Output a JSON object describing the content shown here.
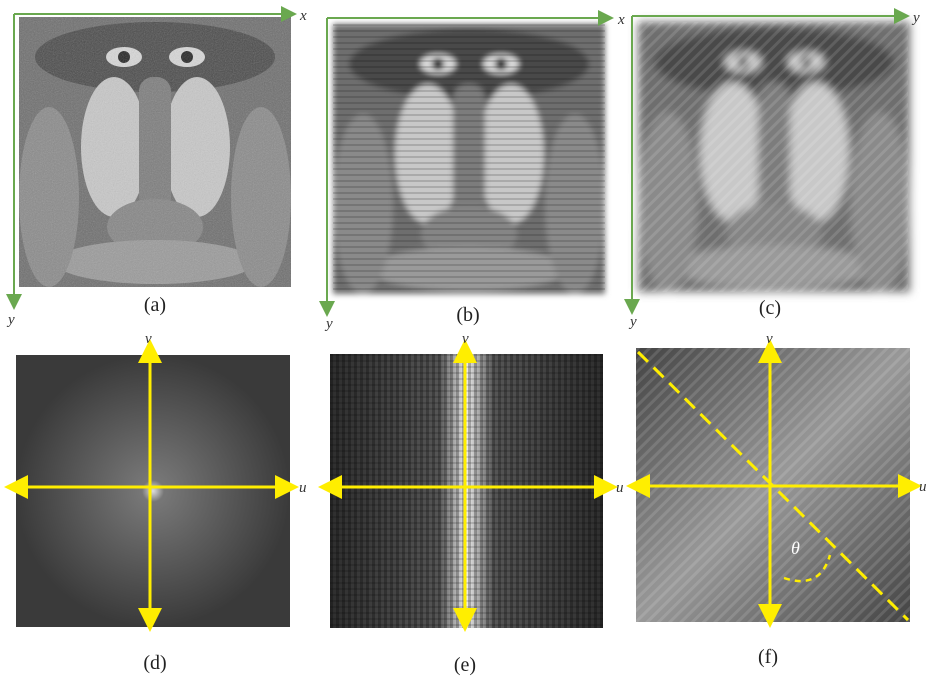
{
  "panels": [
    {
      "label": "(a)",
      "h_axis": "x",
      "v_axis": "y"
    },
    {
      "label": "(b)",
      "h_axis": "x",
      "v_axis": "y"
    },
    {
      "label": "(c)",
      "h_axis": "y",
      "v_axis": "y"
    },
    {
      "label": "(d)",
      "h_axis": "u",
      "v_axis": "v"
    },
    {
      "label": "(e)",
      "h_axis": "u",
      "v_axis": "v"
    },
    {
      "label": "(f)",
      "h_axis": "u",
      "v_axis": "v"
    }
  ],
  "angle_label": "θ"
}
